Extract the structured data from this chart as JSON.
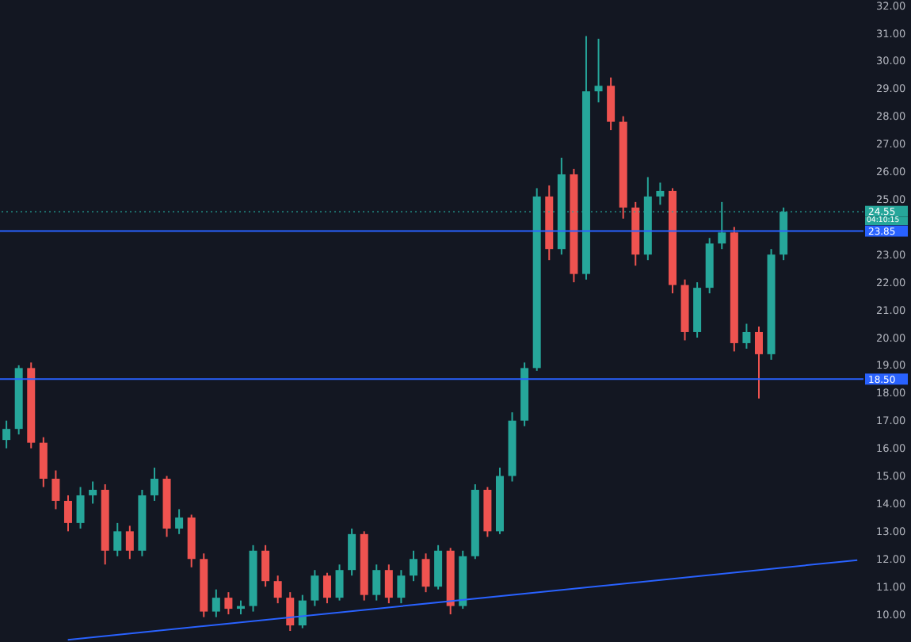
{
  "chart_data": {
    "type": "candlestick",
    "categories": [
      null,
      null,
      null,
      null,
      null,
      null,
      null,
      null,
      null,
      null,
      null,
      null,
      null,
      null,
      null,
      null,
      null,
      null,
      null,
      null,
      null,
      null,
      null,
      null,
      null,
      null,
      null,
      null,
      null,
      null,
      null,
      null,
      null,
      null,
      null,
      null,
      null,
      null,
      null,
      null,
      null,
      null,
      null,
      null,
      null,
      null,
      null,
      null,
      null,
      null,
      null,
      null,
      null,
      null,
      null,
      null,
      null,
      null,
      null,
      null,
      null,
      null,
      null,
      null,
      null,
      null,
      null,
      null,
      null,
      null
    ],
    "ohlc": [
      [
        16.3,
        17.0,
        16.0,
        16.7
      ],
      [
        16.7,
        19.0,
        16.5,
        18.9
      ],
      [
        18.9,
        19.1,
        16.0,
        16.2
      ],
      [
        16.2,
        16.4,
        14.6,
        14.9
      ],
      [
        14.9,
        15.2,
        13.8,
        14.1
      ],
      [
        14.1,
        14.3,
        13.0,
        13.3
      ],
      [
        13.3,
        14.6,
        13.1,
        14.3
      ],
      [
        14.3,
        14.8,
        14.0,
        14.5
      ],
      [
        14.5,
        14.7,
        11.8,
        12.3
      ],
      [
        12.3,
        13.3,
        12.1,
        13.0
      ],
      [
        13.0,
        13.2,
        12.0,
        12.3
      ],
      [
        12.3,
        14.5,
        12.1,
        14.3
      ],
      [
        14.3,
        15.3,
        14.1,
        14.9
      ],
      [
        14.9,
        15.0,
        12.8,
        13.1
      ],
      [
        13.1,
        13.8,
        12.9,
        13.5
      ],
      [
        13.5,
        13.6,
        11.7,
        12.0
      ],
      [
        12.0,
        12.2,
        9.9,
        10.1
      ],
      [
        10.1,
        10.9,
        9.9,
        10.6
      ],
      [
        10.6,
        10.8,
        10.0,
        10.2
      ],
      [
        10.2,
        10.5,
        10.0,
        10.3
      ],
      [
        10.3,
        12.5,
        10.1,
        12.3
      ],
      [
        12.3,
        12.5,
        11.0,
        11.2
      ],
      [
        11.2,
        11.4,
        10.4,
        10.6
      ],
      [
        10.6,
        10.8,
        9.4,
        9.6
      ],
      [
        9.6,
        10.7,
        9.5,
        10.5
      ],
      [
        10.5,
        11.6,
        10.3,
        11.4
      ],
      [
        11.4,
        11.5,
        10.4,
        10.6
      ],
      [
        10.6,
        11.8,
        10.5,
        11.6
      ],
      [
        11.6,
        13.1,
        11.4,
        12.9
      ],
      [
        12.9,
        13.0,
        10.5,
        10.7
      ],
      [
        10.7,
        11.8,
        10.5,
        11.6
      ],
      [
        11.6,
        11.8,
        10.4,
        10.6
      ],
      [
        10.6,
        11.6,
        10.4,
        11.4
      ],
      [
        11.4,
        12.3,
        11.2,
        12.0
      ],
      [
        12.0,
        12.2,
        10.8,
        11.0
      ],
      [
        11.0,
        12.5,
        10.9,
        12.3
      ],
      [
        12.3,
        12.4,
        10.0,
        10.3
      ],
      [
        10.3,
        12.3,
        10.2,
        12.1
      ],
      [
        12.1,
        14.7,
        12.0,
        14.5
      ],
      [
        14.5,
        14.6,
        12.8,
        13.0
      ],
      [
        13.0,
        15.3,
        12.9,
        15.0
      ],
      [
        15.0,
        17.3,
        14.8,
        17.0
      ],
      [
        17.0,
        19.1,
        16.8,
        18.9
      ],
      [
        18.9,
        25.4,
        18.8,
        25.1
      ],
      [
        25.1,
        25.5,
        22.8,
        23.2
      ],
      [
        23.2,
        26.5,
        23.0,
        25.9
      ],
      [
        25.9,
        26.1,
        22.0,
        22.3
      ],
      [
        22.3,
        30.9,
        22.1,
        28.9
      ],
      [
        28.9,
        30.8,
        28.5,
        29.1
      ],
      [
        29.1,
        29.4,
        27.5,
        27.8
      ],
      [
        27.8,
        28.0,
        24.3,
        24.7
      ],
      [
        24.7,
        24.9,
        22.6,
        23.0
      ],
      [
        23.0,
        25.8,
        22.8,
        25.1
      ],
      [
        25.1,
        25.6,
        24.8,
        25.3
      ],
      [
        25.3,
        25.4,
        21.6,
        21.9
      ],
      [
        21.9,
        22.1,
        19.9,
        20.2
      ],
      [
        20.2,
        22.0,
        20.0,
        21.8
      ],
      [
        21.8,
        23.6,
        21.6,
        23.4
      ],
      [
        23.4,
        24.9,
        23.2,
        23.8
      ],
      [
        23.8,
        24.0,
        19.5,
        19.8
      ],
      [
        19.8,
        20.5,
        19.6,
        20.2
      ],
      [
        20.2,
        20.4,
        17.8,
        19.4
      ],
      [
        19.4,
        23.2,
        19.2,
        23.0
      ],
      [
        23.0,
        24.7,
        22.8,
        24.55
      ],
      null,
      null,
      null,
      null,
      null,
      null
    ],
    "colors": [
      "#26a69a",
      "#26a69a",
      "#ef5350",
      "#ef5350",
      "#ef5350",
      "#ef5350",
      "#26a69a",
      "#26a69a",
      "#ef5350",
      "#26a69a",
      "#ef5350",
      "#26a69a",
      "#26a69a",
      "#ef5350",
      "#26a69a",
      "#ef5350",
      "#ef5350",
      "#26a69a",
      "#ef5350",
      "#26a69a",
      "#26a69a",
      "#ef5350",
      "#ef5350",
      "#ef5350",
      "#26a69a",
      "#26a69a",
      "#ef5350",
      "#26a69a",
      "#26a69a",
      "#ef5350",
      "#26a69a",
      "#ef5350",
      "#26a69a",
      "#26a69a",
      "#ef5350",
      "#26a69a",
      "#ef5350",
      "#26a69a",
      "#26a69a",
      "#ef5350",
      "#26a69a",
      "#26a69a",
      "#26a69a",
      "#26a69a",
      "#ef5350",
      "#26a69a",
      "#ef5350",
      "#26a69a",
      "#26a69a",
      "#ef5350",
      "#ef5350",
      "#ef5350",
      "#26a69a",
      "#26a69a",
      "#ef5350",
      "#ef5350",
      "#26a69a",
      "#26a69a",
      "#26a69a",
      "#ef5350",
      "#26a69a",
      "#ef5350",
      "#26a69a",
      "#26a69a",
      null,
      null,
      null,
      null,
      null,
      null
    ],
    "series": [
      {
        "type": "line",
        "color": "#2962ff",
        "values": [
          null,
          null,
          null,
          null,
          null,
          9.08,
          null,
          null,
          null,
          null,
          null,
          null,
          null,
          null,
          null,
          null,
          null,
          null,
          null,
          null,
          null,
          null,
          null,
          null,
          null,
          null,
          null,
          null,
          null,
          null,
          null,
          null,
          null,
          null,
          null,
          null,
          null,
          null,
          null,
          null,
          null,
          null,
          null,
          null,
          null,
          null,
          null,
          null,
          null,
          null,
          null,
          null,
          null,
          null,
          null,
          null,
          null,
          null,
          null,
          null,
          null,
          null,
          null,
          null,
          null,
          null,
          null,
          null,
          null,
          11.96
        ]
      }
    ],
    "ylim": [
      9.0,
      32.2
    ],
    "yticks": [
      {
        "value": 10,
        "label": "10.00"
      },
      {
        "value": 11,
        "label": "11.00"
      },
      {
        "value": 12,
        "label": "12.00"
      },
      {
        "value": 13,
        "label": "13.00"
      },
      {
        "value": 14,
        "label": "14.00"
      },
      {
        "value": 15,
        "label": "15.00"
      },
      {
        "value": 16,
        "label": "16.00"
      },
      {
        "value": 17,
        "label": "17.00"
      },
      {
        "value": 18,
        "label": "18.00"
      },
      {
        "value": 19,
        "label": "19.00"
      },
      {
        "value": 20,
        "label": "20.00"
      },
      {
        "value": 21,
        "label": "21.00"
      },
      {
        "value": 22,
        "label": "22.00"
      },
      {
        "value": 23,
        "label": "23.00"
      },
      {
        "value": 25,
        "label": "25.00"
      },
      {
        "value": 26,
        "label": "26.00"
      },
      {
        "value": 27,
        "label": "27.00"
      },
      {
        "value": 28,
        "label": "28.00"
      },
      {
        "value": 29,
        "label": "29.00"
      },
      {
        "value": 30,
        "label": "30.00"
      },
      {
        "value": 31,
        "label": "31.00"
      },
      {
        "value": 32,
        "label": "32.00"
      }
    ],
    "ref_lines": [
      {
        "axis": "y",
        "value": 18.5,
        "label": "18.50",
        "color": "#2962ff",
        "line_style": "solid"
      },
      {
        "axis": "y",
        "value": 23.85,
        "label": "23.85",
        "color": "#2962ff",
        "line_style": "solid"
      },
      {
        "axis": "y",
        "value": 24.55,
        "label": "24.55",
        "color": "#26a69a",
        "line_style": "dotted"
      }
    ],
    "annotations": [
      "04:10:15"
    ],
    "tick_labels": "y",
    "grid": false,
    "legend": false
  }
}
